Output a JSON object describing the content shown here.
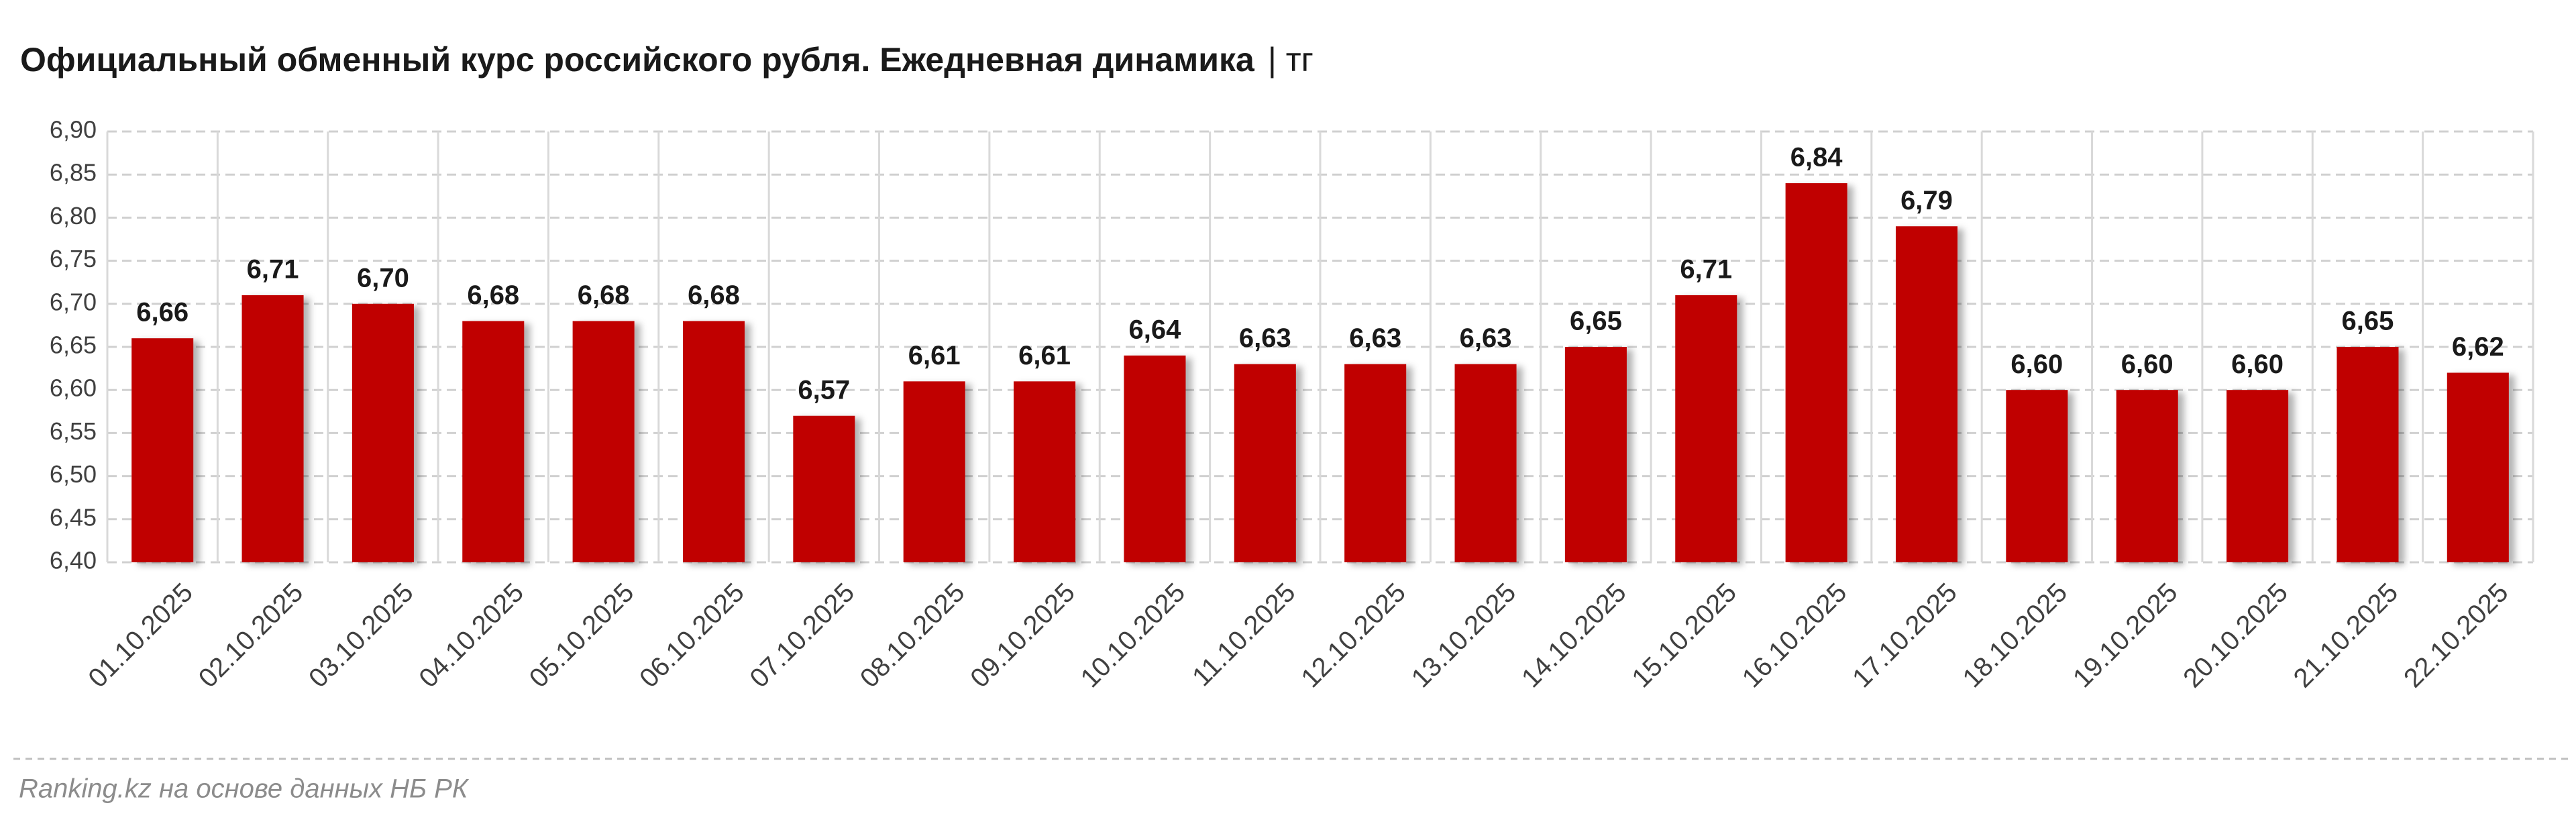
{
  "chart_data": {
    "type": "bar",
    "title": "Официальный обменный курс российского рубля. Ежедневная динамика",
    "title_unit": "| тг",
    "source": "Ranking.kz на основе данных НБ РК",
    "categories": [
      "01.10.2025",
      "02.10.2025",
      "03.10.2025",
      "04.10.2025",
      "05.10.2025",
      "06.10.2025",
      "07.10.2025",
      "08.10.2025",
      "09.10.2025",
      "10.10.2025",
      "11.10.2025",
      "12.10.2025",
      "13.10.2025",
      "14.10.2025",
      "15.10.2025",
      "16.10.2025",
      "17.10.2025",
      "18.10.2025",
      "19.10.2025",
      "20.10.2025",
      "21.10.2025",
      "22.10.2025"
    ],
    "values": [
      6.66,
      6.71,
      6.7,
      6.68,
      6.68,
      6.68,
      6.57,
      6.61,
      6.61,
      6.64,
      6.63,
      6.63,
      6.63,
      6.65,
      6.71,
      6.84,
      6.79,
      6.6,
      6.6,
      6.6,
      6.65,
      6.62
    ],
    "value_labels": [
      "6,66",
      "6,71",
      "6,70",
      "6,68",
      "6,68",
      "6,68",
      "6,57",
      "6,61",
      "6,61",
      "6,64",
      "6,63",
      "6,63",
      "6,63",
      "6,65",
      "6,71",
      "6,84",
      "6,79",
      "6,60",
      "6,60",
      "6,60",
      "6,65",
      "6,62"
    ],
    "color": "#c00000",
    "ylim": [
      6.4,
      6.9
    ],
    "yticks": [
      {
        "value": 6.4,
        "label": "6,40"
      },
      {
        "value": 6.45,
        "label": "6,45"
      },
      {
        "value": 6.5,
        "label": "6,50"
      },
      {
        "value": 6.55,
        "label": "6,55"
      },
      {
        "value": 6.6,
        "label": "6,60"
      },
      {
        "value": 6.65,
        "label": "6,65"
      },
      {
        "value": 6.7,
        "label": "6,70"
      },
      {
        "value": 6.75,
        "label": "6,75"
      },
      {
        "value": 6.8,
        "label": "6,80"
      },
      {
        "value": 6.85,
        "label": "6,85"
      },
      {
        "value": 6.9,
        "label": "6,90"
      }
    ],
    "grid": true
  }
}
